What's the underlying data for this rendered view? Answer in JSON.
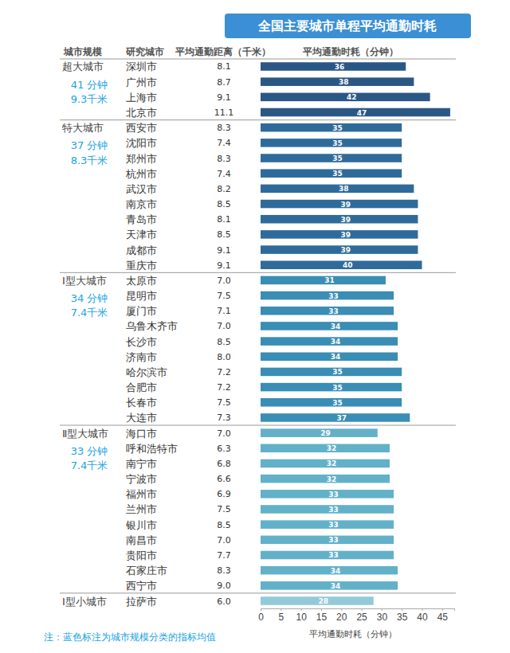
{
  "chart_data": {
    "type": "bar",
    "orientation": "horizontal",
    "title": "全国主要城市单程平均通勤时耗",
    "columns": {
      "scale": "城市规模",
      "city": "研究城市",
      "distance": "平均通勤距离（千米）",
      "time": "平均通勤时耗（分钟）"
    },
    "x_label": "平均通勤时耗（分钟）",
    "note": "注：蓝色标注为城市规模分类的指标均值",
    "categories": [
      "深圳市",
      "广州市",
      "上海市",
      "北京市",
      "西安市",
      "沈阳市",
      "郑州市",
      "杭州市",
      "武汉市",
      "南京市",
      "青岛市",
      "天津市",
      "成都市",
      "重庆市",
      "太原市",
      "昆明市",
      "厦门市",
      "乌鲁木齐市",
      "长沙市",
      "济南市",
      "哈尔滨市",
      "合肥市",
      "长春市",
      "大连市",
      "海口市",
      "呼和浩特市",
      "南宁市",
      "宁波市",
      "福州市",
      "兰州市",
      "银川市",
      "南昌市",
      "贵阳市",
      "石家庄市",
      "西宁市",
      "拉萨市"
    ],
    "values": [
      36,
      38,
      42,
      47,
      35,
      35,
      35,
      35,
      38,
      39,
      39,
      39,
      39,
      40,
      31,
      33,
      33,
      34,
      34,
      34,
      35,
      35,
      35,
      37,
      29,
      32,
      32,
      32,
      33,
      33,
      33,
      33,
      33,
      34,
      34,
      28
    ],
    "distances": [
      "8.1",
      "8.7",
      "9.1",
      "11.1",
      "8.3",
      "7.4",
      "8.3",
      "7.4",
      "8.2",
      "8.5",
      "8.1",
      "8.5",
      "9.1",
      "9.1",
      "7.0",
      "7.5",
      "7.1",
      "7.0",
      "8.5",
      "8.0",
      "7.2",
      "7.2",
      "7.5",
      "7.3",
      "7.0",
      "6.3",
      "6.8",
      "6.6",
      "6.9",
      "7.5",
      "8.5",
      "7.0",
      "7.7",
      "8.3",
      "9.0",
      "6.0"
    ],
    "colors": [
      "#2b5785",
      "#2b5785",
      "#2b5785",
      "#2b5785",
      "#2f6b9a",
      "#2f6b9a",
      "#2f6b9a",
      "#2f6b9a",
      "#2f6b9a",
      "#2f6b9a",
      "#2f6b9a",
      "#2f6b9a",
      "#2f6b9a",
      "#2f6b9a",
      "#3a8db5",
      "#3a8db5",
      "#3a8db5",
      "#3a8db5",
      "#3a8db5",
      "#3a8db5",
      "#3a8db5",
      "#3a8db5",
      "#3a8db5",
      "#3a8db5",
      "#62b1c9",
      "#62b1c9",
      "#62b1c9",
      "#62b1c9",
      "#62b1c9",
      "#62b1c9",
      "#62b1c9",
      "#62b1c9",
      "#62b1c9",
      "#62b1c9",
      "#62b1c9",
      "#93cad9"
    ],
    "groups": [
      {
        "name": "超大城市",
        "mean_time": "41 分钟",
        "mean_distance": "9.3千米",
        "members": [
          "深圳市",
          "广州市",
          "上海市",
          "北京市"
        ]
      },
      {
        "name": "特大城市",
        "mean_time": "37 分钟",
        "mean_distance": "8.3千米",
        "members": [
          "西安市",
          "沈阳市",
          "郑州市",
          "杭州市",
          "武汉市",
          "南京市",
          "青岛市",
          "天津市",
          "成都市",
          "重庆市"
        ]
      },
      {
        "name": "Ⅰ型大城市",
        "mean_time": "34 分钟",
        "mean_distance": "7.4千米",
        "members": [
          "太原市",
          "昆明市",
          "厦门市",
          "乌鲁木齐市",
          "长沙市",
          "济南市",
          "哈尔滨市",
          "合肥市",
          "长春市",
          "大连市"
        ]
      },
      {
        "name": "Ⅱ型大城市",
        "mean_time": "33 分钟",
        "mean_distance": "7.4千米",
        "members": [
          "海口市",
          "呼和浩特市",
          "南宁市",
          "宁波市",
          "福州市",
          "兰州市",
          "银川市",
          "南昌市",
          "贵阳市",
          "石家庄市",
          "西宁市"
        ]
      },
      {
        "name": "Ⅰ型小城市",
        "members": [
          "拉萨市"
        ]
      }
    ],
    "xlim": [
      0,
      48
    ],
    "xticks": [
      0,
      5,
      10,
      15,
      20,
      25,
      30,
      35,
      40,
      45
    ],
    "grid": false,
    "data_labels": true
  }
}
